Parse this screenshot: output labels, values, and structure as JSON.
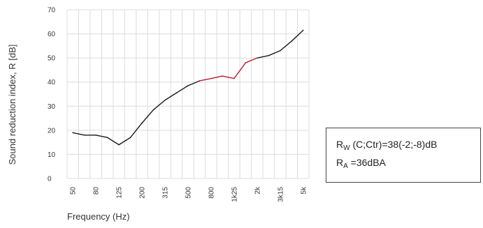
{
  "chart_data": {
    "type": "line",
    "title": "",
    "xlabel": "Frequency (Hz)",
    "ylabel": "Sound reduction index, R [dB]",
    "ylim": [
      0,
      70
    ],
    "yticks": [
      0,
      10,
      20,
      30,
      40,
      50,
      60,
      70
    ],
    "ytick_labels": [
      "0",
      "10",
      "20",
      "30",
      "40",
      "50",
      "60",
      "70"
    ],
    "x": [
      "50",
      "63",
      "80",
      "100",
      "125",
      "160",
      "200",
      "250",
      "315",
      "400",
      "500",
      "630",
      "800",
      "1000",
      "1250",
      "1600",
      "2000",
      "2500",
      "3150",
      "4000",
      "5000"
    ],
    "xtick_labels": [
      "50",
      "80",
      "125",
      "200",
      "315",
      "500",
      "800",
      "1k25",
      "2k",
      "3k15",
      "5k"
    ],
    "grid": true,
    "series": [
      {
        "values": [
          19,
          18,
          18,
          17,
          14,
          17,
          23,
          28.5,
          32.5,
          35.5,
          38.5,
          40.5,
          41.5,
          42.5,
          41.5,
          48,
          50,
          51,
          53,
          57,
          61.5
        ]
      }
    ],
    "highlight_range": [
      "630",
      "2000"
    ],
    "colors": {
      "line": "#1a1a1a",
      "highlight": "#b22030",
      "grid": "#dcdcdc"
    }
  },
  "info_box": {
    "rw_main": "R",
    "rw_sub": "W",
    "rw_rest": " (C;Ctr)=38(-2;-8)dB",
    "ra_main": "R",
    "ra_sub": "A",
    "ra_rest": " =36dBA"
  }
}
